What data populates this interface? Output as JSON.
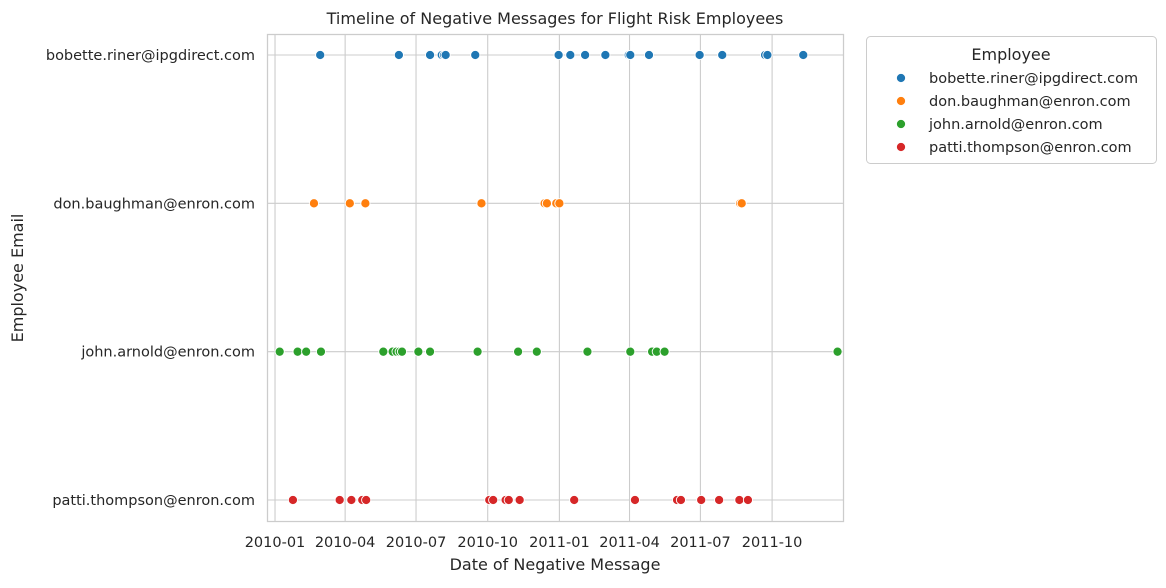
{
  "chart_data": {
    "type": "scatter",
    "title": "Timeline of Negative Messages for Flight Risk Employees",
    "xlabel": "Date of Negative Message",
    "ylabel": "Employee Email",
    "x_type": "date",
    "xlim": [
      "2009-12-23",
      "2011-12-31"
    ],
    "x_ticks": [
      "2010-01-01",
      "2010-04-01",
      "2010-07-01",
      "2010-10-01",
      "2011-01-01",
      "2011-04-01",
      "2011-07-01",
      "2011-10-01"
    ],
    "x_tick_labels": [
      "2010-01",
      "2010-04",
      "2010-07",
      "2010-10",
      "2011-01",
      "2011-04",
      "2011-07",
      "2011-10"
    ],
    "categories": [
      "bobette.riner@ipgdirect.com",
      "don.baughman@enron.com",
      "john.arnold@enron.com",
      "patti.thompson@enron.com"
    ],
    "grid": true,
    "legend": {
      "title": "Employee",
      "placement": "outside-right-top"
    },
    "series": [
      {
        "name": "bobette.riner@ipgdirect.com",
        "color": "#1f77b4",
        "dates": [
          "2010-02-28",
          "2010-06-09",
          "2010-07-19",
          "2010-08-03",
          "2010-08-06",
          "2010-08-08",
          "2010-09-15",
          "2010-12-31",
          "2011-01-15",
          "2011-02-03",
          "2011-03-01",
          "2011-03-31",
          "2011-04-02",
          "2011-04-26",
          "2011-06-30",
          "2011-07-29",
          "2011-09-22",
          "2011-09-25",
          "2011-11-10"
        ]
      },
      {
        "name": "don.baughman@enron.com",
        "color": "#ff7f0e",
        "dates": [
          "2010-02-20",
          "2010-04-07",
          "2010-04-27",
          "2010-09-23",
          "2010-12-13",
          "2010-12-16",
          "2010-12-28",
          "2011-01-01",
          "2011-08-21",
          "2011-08-23"
        ]
      },
      {
        "name": "john.arnold@enron.com",
        "color": "#2ca02c",
        "dates": [
          "2010-01-07",
          "2010-01-30",
          "2010-02-10",
          "2010-03-01",
          "2010-05-20",
          "2010-06-01",
          "2010-06-06",
          "2010-06-10",
          "2010-06-13",
          "2010-07-04",
          "2010-07-19",
          "2010-09-18",
          "2010-11-09",
          "2010-12-03",
          "2011-02-06",
          "2011-04-02",
          "2011-04-30",
          "2011-05-06",
          "2011-05-16",
          "2011-12-24"
        ]
      },
      {
        "name": "patti.thompson@enron.com",
        "color": "#d62728",
        "dates": [
          "2010-01-24",
          "2010-03-25",
          "2010-04-09",
          "2010-04-23",
          "2010-04-28",
          "2010-10-03",
          "2010-10-08",
          "2010-10-24",
          "2010-10-28",
          "2010-11-11",
          "2011-01-20",
          "2011-04-08",
          "2011-06-01",
          "2011-06-06",
          "2011-07-02",
          "2011-07-25",
          "2011-08-20",
          "2011-08-31"
        ]
      }
    ]
  }
}
